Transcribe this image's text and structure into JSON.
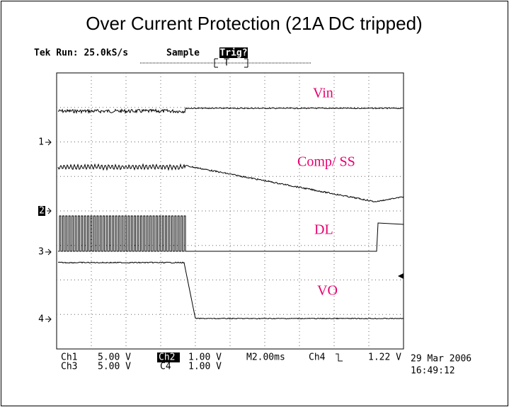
{
  "title": "Over Current Protection (21A DC tripped)",
  "header": {
    "run": "Tek Run: 25.0kS/s",
    "mode": "Sample",
    "trigger": "Trig?",
    "trigger_marker": "T"
  },
  "channel_markers": [
    "1",
    "2",
    "3",
    "4"
  ],
  "trace_labels": [
    "Vin",
    "Comp/ SS",
    "DL",
    "VO"
  ],
  "readouts": {
    "row1": [
      "Ch1",
      "5.00 V",
      "Ch2",
      "1.00 V",
      "M2.00ms",
      "Ch4",
      "1.22 V"
    ],
    "row2": [
      "Ch3",
      "5.00 V",
      "C4",
      "1.00 V"
    ],
    "date": "29 Mar 2006",
    "time": "16:49:12"
  }
}
